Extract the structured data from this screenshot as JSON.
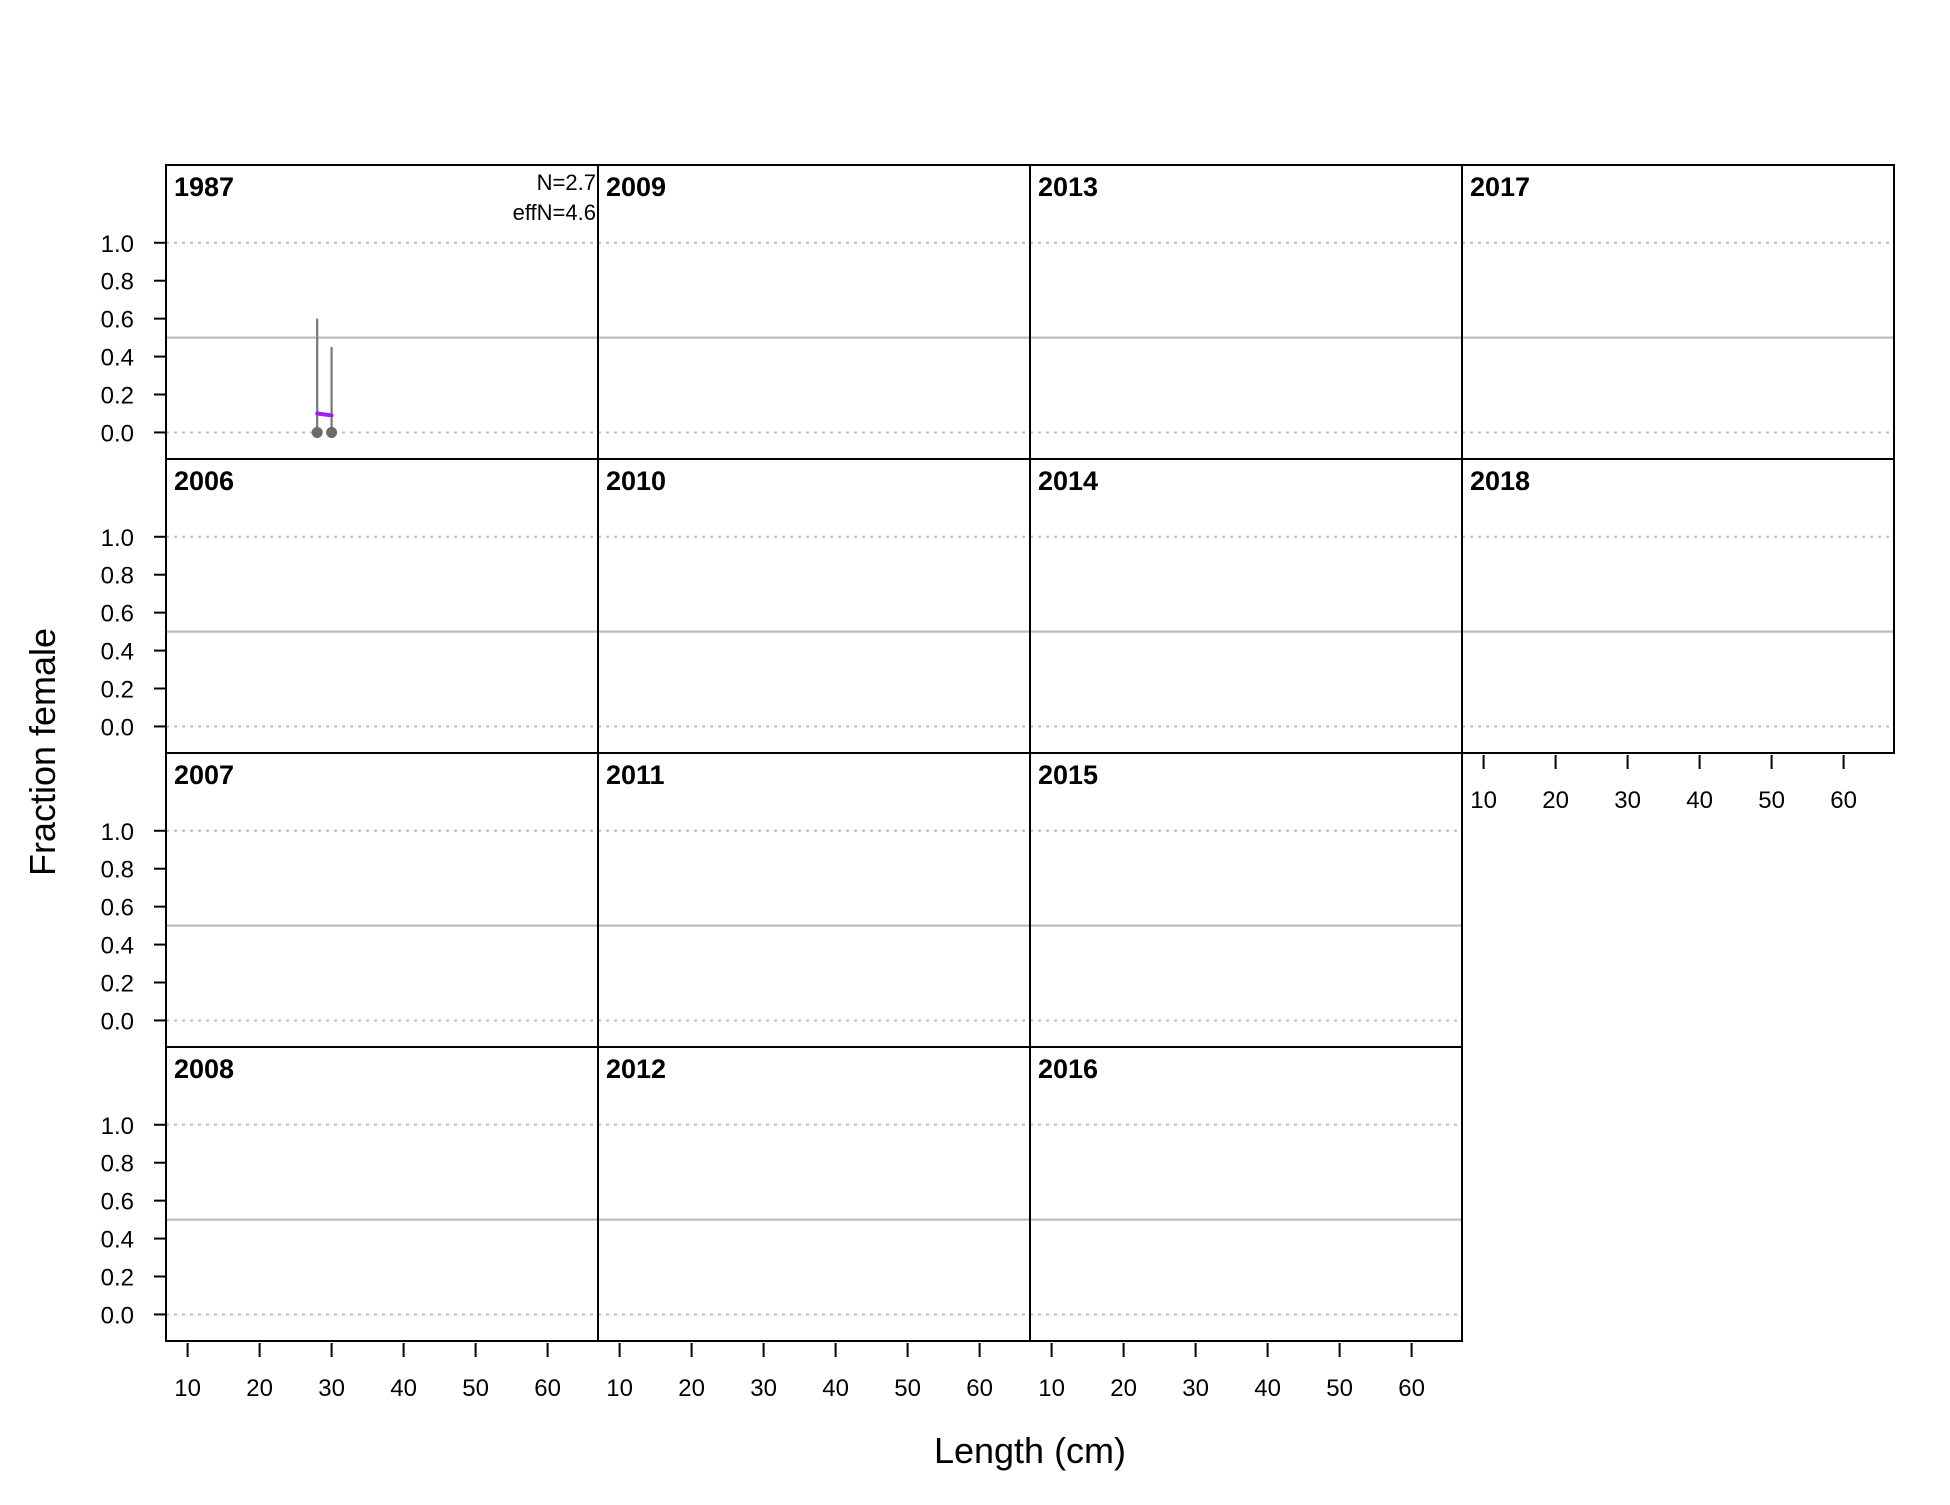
{
  "chart_data": {
    "type": "scatter",
    "title": "",
    "xlabel": "Length (cm)",
    "ylabel": "Fraction female",
    "xlim": [
      7,
      67
    ],
    "ylim": [
      -0.14,
      1.41
    ],
    "x_ticks": [
      10,
      20,
      30,
      40,
      50,
      60
    ],
    "x_tick_labels": [
      "10",
      "20",
      "30",
      "40",
      "50",
      "60"
    ],
    "y_ticks": [
      0.0,
      0.2,
      0.4,
      0.6,
      0.8,
      1.0
    ],
    "y_tick_labels": [
      "0.0",
      "0.2",
      "0.4",
      "0.6",
      "0.8",
      "1.0"
    ],
    "reference_lines": {
      "dotted": [
        0.0,
        1.0
      ],
      "solid": [
        0.5
      ]
    },
    "colors": {
      "observed": "#6b6b6b",
      "interval": "#777777",
      "expected": "#a020f0",
      "reference": "#bdbdbd"
    },
    "layout": {
      "columns": 4,
      "rows": 4,
      "order": "column-major"
    },
    "panels": [
      {
        "year": "1987",
        "N_label": "N=2.7",
        "effN_label": "effN=4.6",
        "observed": {
          "x": [
            28,
            30
          ],
          "y": [
            0.0,
            0.0
          ]
        },
        "intervals": [
          {
            "x": 28,
            "low": 0.0,
            "high": 0.6
          },
          {
            "x": 30,
            "low": 0.0,
            "high": 0.45
          }
        ],
        "expected": {
          "x": [
            28,
            30
          ],
          "y": [
            0.1,
            0.09
          ]
        }
      },
      {
        "year": "2006"
      },
      {
        "year": "2007"
      },
      {
        "year": "2008"
      },
      {
        "year": "2009"
      },
      {
        "year": "2010"
      },
      {
        "year": "2011"
      },
      {
        "year": "2012"
      },
      {
        "year": "2013"
      },
      {
        "year": "2014"
      },
      {
        "year": "2015"
      },
      {
        "year": "2016"
      },
      {
        "year": "2017"
      },
      {
        "year": "2018"
      }
    ]
  }
}
